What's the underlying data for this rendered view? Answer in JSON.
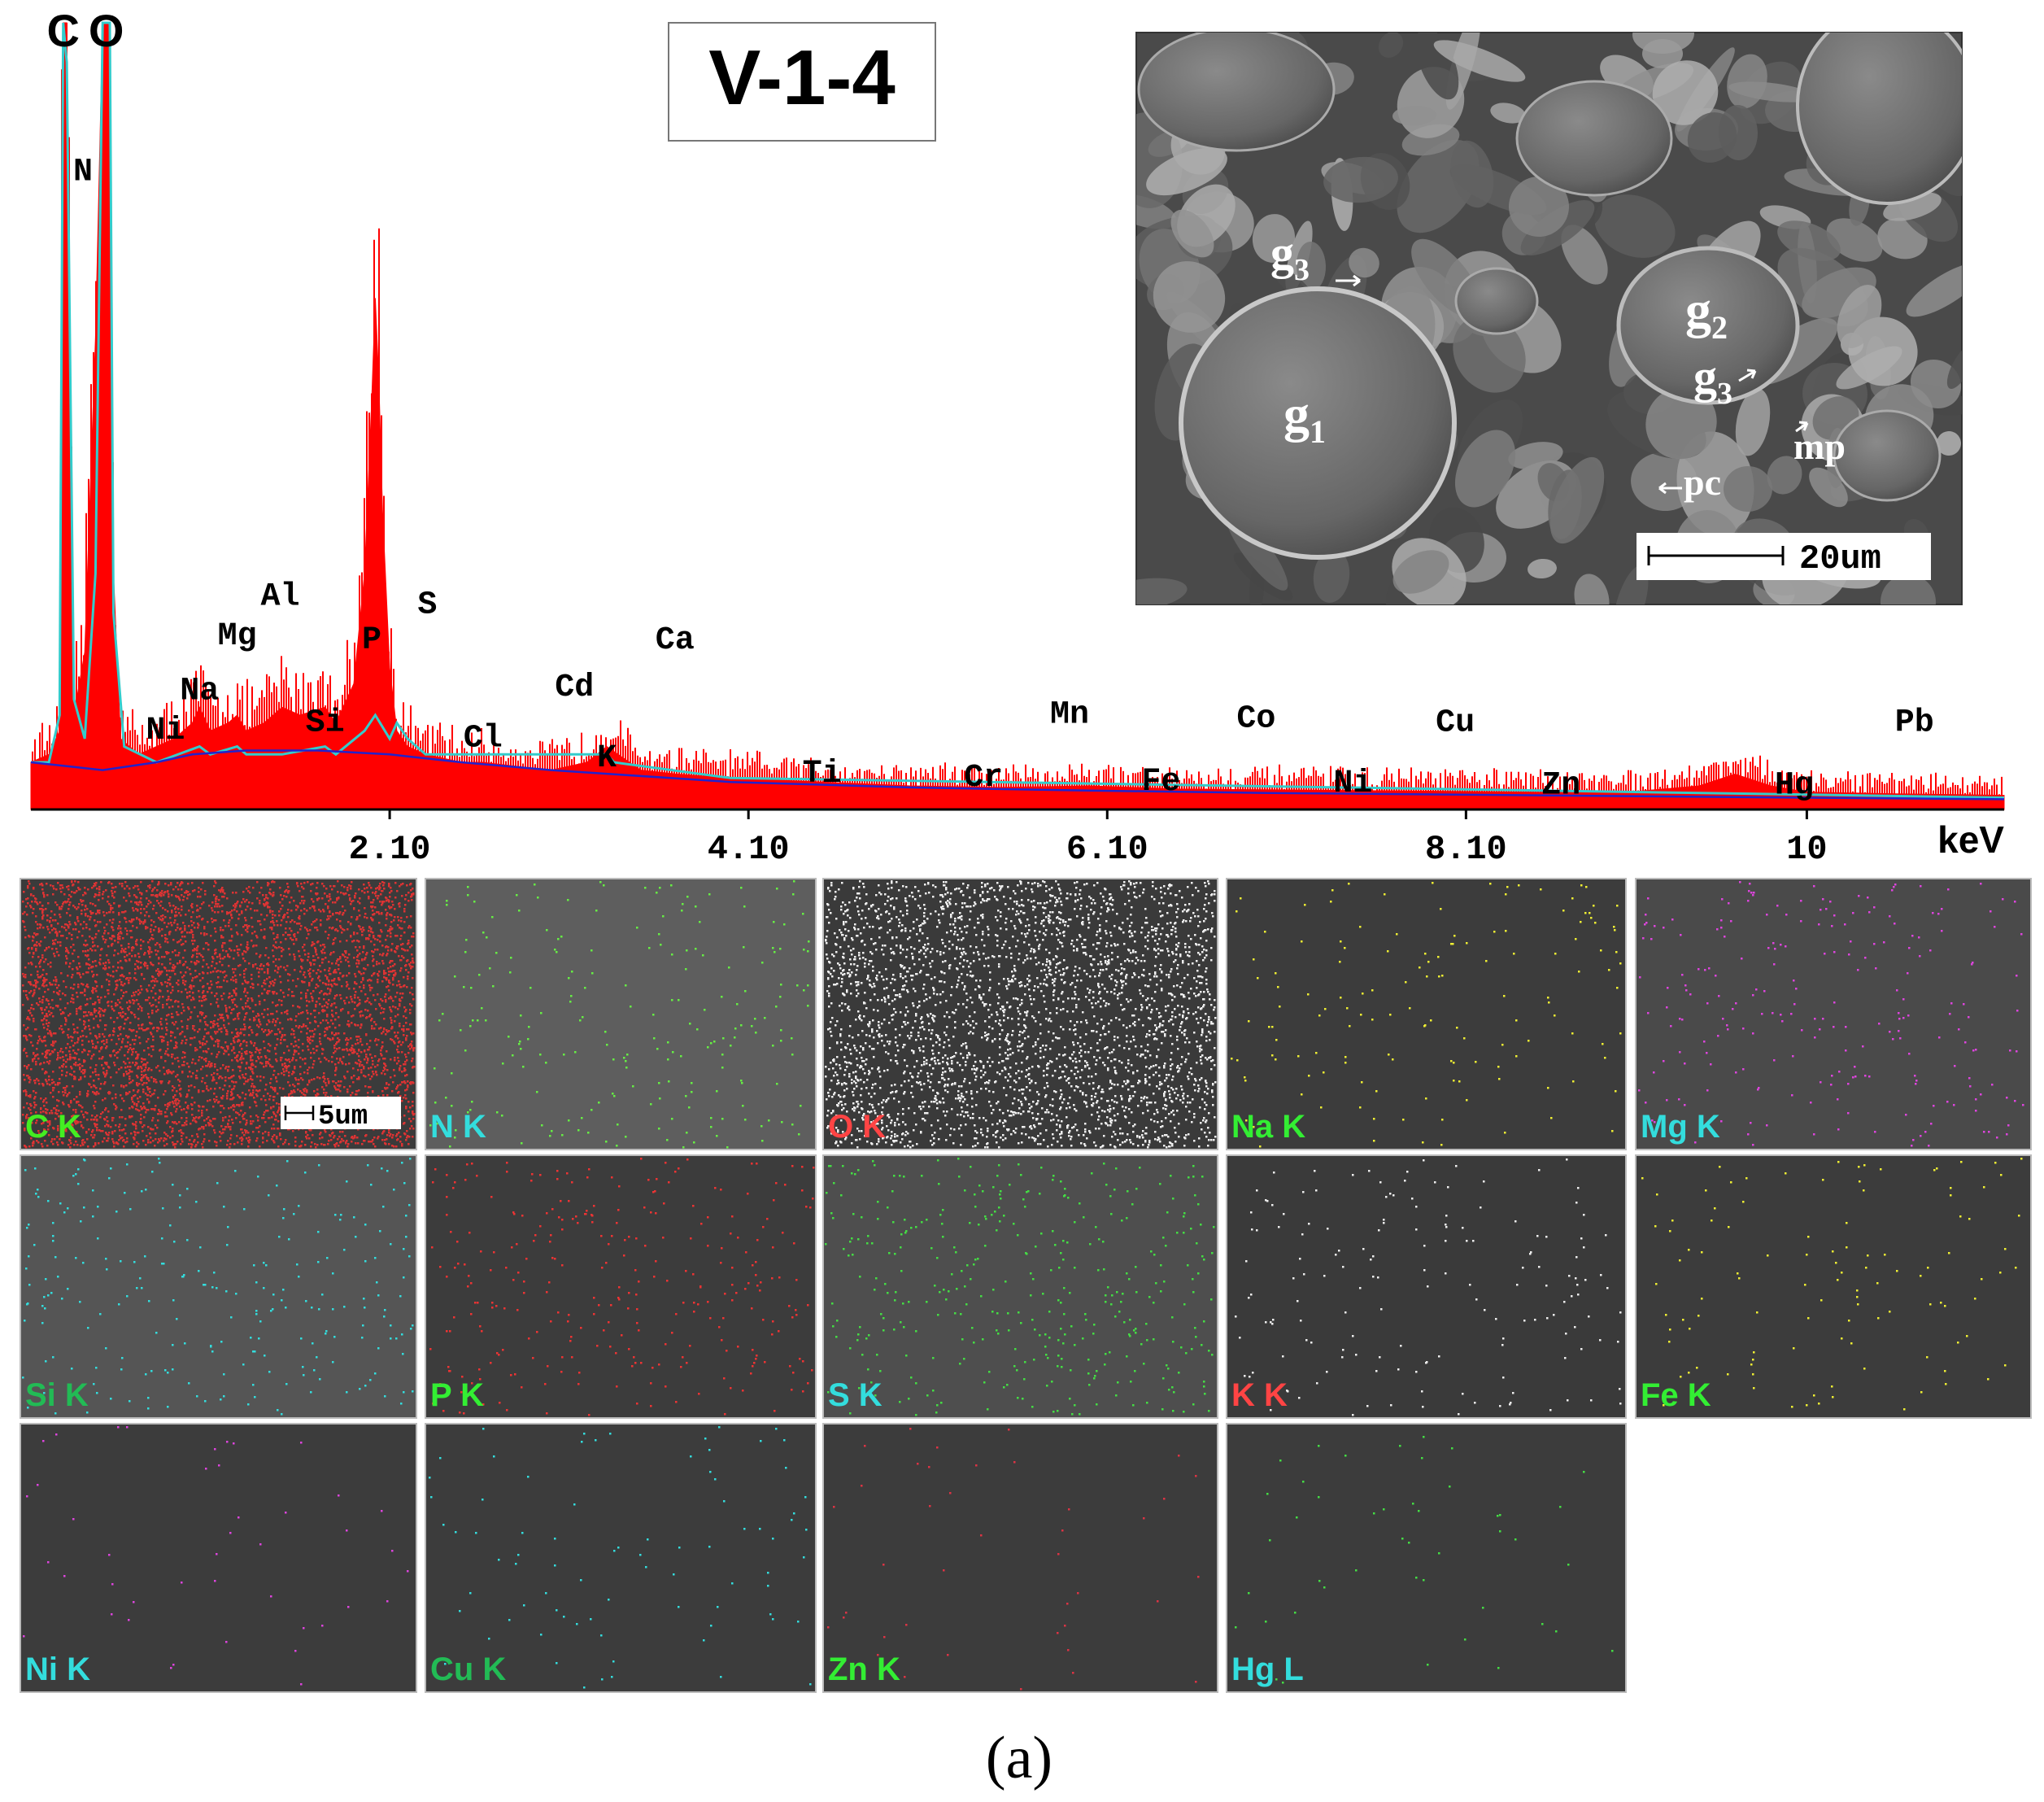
{
  "sample_label": "V-1-4",
  "caption": "(a)",
  "chart_data": {
    "type": "line",
    "title": "",
    "xlabel": "keV",
    "ylabel": "",
    "xlim": [
      0.1,
      11.1
    ],
    "ylim": [
      0,
      100
    ],
    "x_ticks": [
      {
        "value": 2.1,
        "label": "2.10"
      },
      {
        "value": 4.1,
        "label": "4.10"
      },
      {
        "value": 6.1,
        "label": "6.10"
      },
      {
        "value": 8.1,
        "label": "8.10"
      },
      {
        "value": 10.0,
        "label": "10"
      }
    ],
    "grid": false,
    "series": [
      {
        "kind": "spectrum",
        "color": "#ff0000",
        "x": [
          0.1,
          0.2,
          0.26,
          0.28,
          0.3,
          0.32,
          0.34,
          0.4,
          0.46,
          0.5,
          0.52,
          0.54,
          0.56,
          0.6,
          0.7,
          0.8,
          0.9,
          1.0,
          1.04,
          1.1,
          1.2,
          1.25,
          1.3,
          1.4,
          1.5,
          1.6,
          1.74,
          1.8,
          1.9,
          1.96,
          2.0,
          2.02,
          2.04,
          2.06,
          2.1,
          2.14,
          2.2,
          2.3,
          2.5,
          2.62,
          2.8,
          3.0,
          3.2,
          3.31,
          3.5,
          3.7,
          4.0,
          4.5,
          5.0,
          5.5,
          6.0,
          6.5,
          7.0,
          7.5,
          8.0,
          8.5,
          9.0,
          9.4,
          9.6,
          9.8,
          10.0,
          10.5,
          11.1
        ],
        "y": [
          6,
          7,
          10,
          100,
          100,
          40,
          12,
          20,
          60,
          100,
          100,
          100,
          30,
          9,
          7,
          8,
          9,
          11,
          13,
          10,
          11,
          12,
          10,
          11,
          13,
          12,
          13,
          11,
          16,
          30,
          52,
          65,
          54,
          38,
          18,
          10,
          8,
          7,
          6,
          6,
          5.5,
          5,
          6,
          8,
          5,
          4.5,
          4,
          3.5,
          3,
          2.8,
          3,
          2.6,
          2.5,
          2.4,
          2.3,
          2.2,
          2.2,
          3,
          4.5,
          3,
          2.2,
          2,
          1.8
        ]
      },
      {
        "kind": "background",
        "color": "#0000cc",
        "x": [
          0.1,
          0.3,
          0.5,
          0.8,
          1.0,
          1.3,
          1.7,
          2.1,
          2.5,
          3.0,
          4.0,
          5.0,
          6.0,
          7.0,
          8.0,
          9.0,
          10.0,
          11.1
        ],
        "y": [
          6,
          5.5,
          5,
          6,
          7,
          7.5,
          7.5,
          7,
          6,
          5,
          3.5,
          2.8,
          2.4,
          2.1,
          1.9,
          1.7,
          1.5,
          1.3
        ]
      },
      {
        "kind": "fit",
        "color": "#33cccc",
        "x": [
          0.1,
          0.2,
          0.26,
          0.28,
          0.3,
          0.34,
          0.4,
          0.46,
          0.5,
          0.54,
          0.56,
          0.62,
          0.8,
          1.04,
          1.1,
          1.25,
          1.3,
          1.5,
          1.74,
          1.8,
          1.96,
          2.02,
          2.1,
          2.14,
          2.2,
          2.3,
          3.31,
          3.35,
          4.0,
          11.1
        ],
        "y": [
          6,
          6,
          12,
          100,
          95,
          14,
          9,
          30,
          100,
          100,
          25,
          8,
          6,
          8,
          7,
          8,
          7,
          7,
          8,
          7,
          10,
          12,
          9,
          11,
          9,
          7,
          7,
          6,
          4,
          1.5
        ]
      }
    ],
    "peak_labels": [
      {
        "text": "C",
        "x": 0.28,
        "y": 97,
        "label_y": 97,
        "size": "large"
      },
      {
        "text": "O",
        "x": 0.52,
        "y": 97,
        "label_y": 97,
        "size": "large"
      },
      {
        "text": "N",
        "x": 0.39,
        "y": 80,
        "label_y": 80,
        "size": "normal"
      },
      {
        "text": "Ni",
        "x": 0.85,
        "y": 9,
        "label_y": 9,
        "size": "normal"
      },
      {
        "text": "Na",
        "x": 1.04,
        "y": 14,
        "label_y": 14,
        "size": "normal"
      },
      {
        "text": "Mg",
        "x": 1.25,
        "y": 21,
        "label_y": 21,
        "size": "normal"
      },
      {
        "text": "Al",
        "x": 1.49,
        "y": 26,
        "label_y": 26,
        "size": "normal"
      },
      {
        "text": "Si",
        "x": 1.74,
        "y": 10,
        "label_y": 10,
        "size": "normal"
      },
      {
        "text": "P",
        "x": 2.0,
        "y": 20.5,
        "label_y": 20.5,
        "size": "normal"
      },
      {
        "text": "S",
        "x": 2.31,
        "y": 25,
        "label_y": 25,
        "size": "normal"
      },
      {
        "text": "Cl",
        "x": 2.62,
        "y": 8,
        "label_y": 8,
        "size": "normal"
      },
      {
        "text": "K",
        "x": 3.31,
        "y": 5.5,
        "label_y": 5.5,
        "size": "normal"
      },
      {
        "text": "Cd",
        "x": 3.13,
        "y": 14.5,
        "label_y": 14.5,
        "size": "normal"
      },
      {
        "text": "Ca",
        "x": 3.69,
        "y": 20.5,
        "label_y": 20.5,
        "size": "normal"
      },
      {
        "text": "Ti",
        "x": 4.51,
        "y": 3.5,
        "label_y": 3.5,
        "size": "normal"
      },
      {
        "text": "Cr",
        "x": 5.41,
        "y": 3,
        "label_y": 3,
        "size": "normal"
      },
      {
        "text": "Mn",
        "x": 5.89,
        "y": 11,
        "label_y": 11,
        "size": "normal"
      },
      {
        "text": "Fe",
        "x": 6.4,
        "y": 2.5,
        "label_y": 2.5,
        "size": "normal"
      },
      {
        "text": "Co",
        "x": 6.93,
        "y": 10.5,
        "label_y": 10.5,
        "size": "normal"
      },
      {
        "text": "Ni",
        "x": 7.47,
        "y": 2.3,
        "label_y": 2.3,
        "size": "normal"
      },
      {
        "text": "Cu",
        "x": 8.04,
        "y": 10,
        "label_y": 10,
        "size": "normal"
      },
      {
        "text": "Zn",
        "x": 8.63,
        "y": 2,
        "label_y": 2,
        "size": "normal"
      },
      {
        "text": "Hg",
        "x": 9.93,
        "y": 2,
        "label_y": 2,
        "size": "normal"
      },
      {
        "text": "Pb",
        "x": 10.6,
        "y": 10,
        "label_y": 10,
        "size": "normal"
      }
    ]
  },
  "sem_image": {
    "scale_bar": "20um",
    "labels": [
      {
        "text": "g",
        "sub": "1"
      },
      {
        "text": "g",
        "sub": "2"
      },
      {
        "text": "g",
        "sub": "3"
      },
      {
        "text": "g",
        "sub": "3"
      },
      {
        "text": "mp",
        "sub": ""
      },
      {
        "text": "pc",
        "sub": ""
      }
    ]
  },
  "maps": {
    "scale_bar": "5um",
    "panels": [
      {
        "label": "C  K",
        "label_color": "#44ee22",
        "dot_color": "#dd3333",
        "bg": "#3b3b3b",
        "density": 5500
      },
      {
        "label": "N K",
        "label_color": "#33dddd",
        "dot_color": "#66ee44",
        "bg": "#5e5e5e",
        "density": 220
      },
      {
        "label": "O K",
        "label_color": "#ff4444",
        "dot_color": "#f0f0f0",
        "bg": "#3a3a3a",
        "density": 3200
      },
      {
        "label": "Na K",
        "label_color": "#33ee33",
        "dot_color": "#eeee33",
        "bg": "#3c3c3c",
        "density": 140
      },
      {
        "label": "Mg K",
        "label_color": "#33dddd",
        "dot_color": "#dd44dd",
        "bg": "#4a4a4a",
        "density": 230
      },
      {
        "label": "Si K",
        "label_color": "#22bb55",
        "dot_color": "#33dddd",
        "bg": "#555555",
        "density": 260
      },
      {
        "label": "P K",
        "label_color": "#33ee33",
        "dot_color": "#ee3333",
        "bg": "#3c3c3c",
        "density": 300
      },
      {
        "label": "S K",
        "label_color": "#33dddd",
        "dot_color": "#44dd44",
        "bg": "#4e4e4e",
        "density": 380
      },
      {
        "label": "K K",
        "label_color": "#ff4444",
        "dot_color": "#eeeeee",
        "bg": "#3a3a3a",
        "density": 160
      },
      {
        "label": "Fe K",
        "label_color": "#33ee33",
        "dot_color": "#eeee33",
        "bg": "#3c3c3c",
        "density": 110
      },
      {
        "label": "Ni K",
        "label_color": "#33dddd",
        "dot_color": "#dd44dd",
        "bg": "#3c3c3c",
        "density": 45
      },
      {
        "label": "Cu K",
        "label_color": "#22bb55",
        "dot_color": "#33dddd",
        "bg": "#3c3c3c",
        "density": 80
      },
      {
        "label": "Zn K",
        "label_color": "#33ee33",
        "dot_color": "#dd3344",
        "bg": "#3c3c3c",
        "density": 40
      },
      {
        "label": "Hg L",
        "label_color": "#33dddd",
        "dot_color": "#44dd44",
        "bg": "#3c3c3c",
        "density": 45
      }
    ]
  }
}
